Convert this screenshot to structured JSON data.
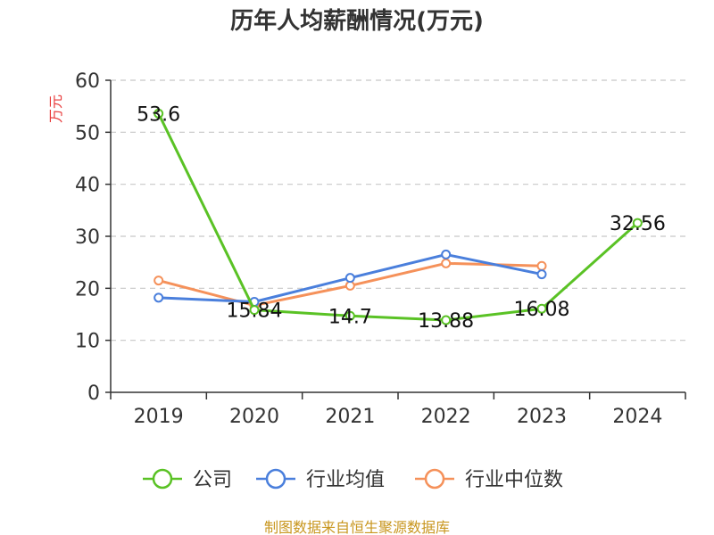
{
  "chart_data": {
    "type": "line",
    "title": "历年人均薪酬情况(万元)",
    "ylabel": "万元",
    "xlabel": "",
    "categories": [
      "2019",
      "2020",
      "2021",
      "2022",
      "2023",
      "2024"
    ],
    "ylim": [
      0,
      60
    ],
    "yticks": [
      0,
      10,
      20,
      30,
      40,
      50,
      60
    ],
    "grid": true,
    "legend_position": "bottom",
    "series": [
      {
        "name": "公司",
        "color": "#5ac225",
        "values": [
          53.6,
          15.84,
          14.7,
          13.88,
          16.08,
          32.56
        ],
        "labels": [
          "53.6",
          "15.84",
          "14.7",
          "13.88",
          "16.08",
          "32.56"
        ]
      },
      {
        "name": "行业均值",
        "color": "#4a7fdc",
        "values": [
          18.2,
          17.4,
          22.0,
          26.5,
          22.7,
          null
        ]
      },
      {
        "name": "行业中位数",
        "color": "#f5915a",
        "values": [
          21.5,
          16.7,
          20.5,
          24.8,
          24.3,
          null
        ]
      }
    ]
  },
  "source": "制图数据来自恒生聚源数据库"
}
